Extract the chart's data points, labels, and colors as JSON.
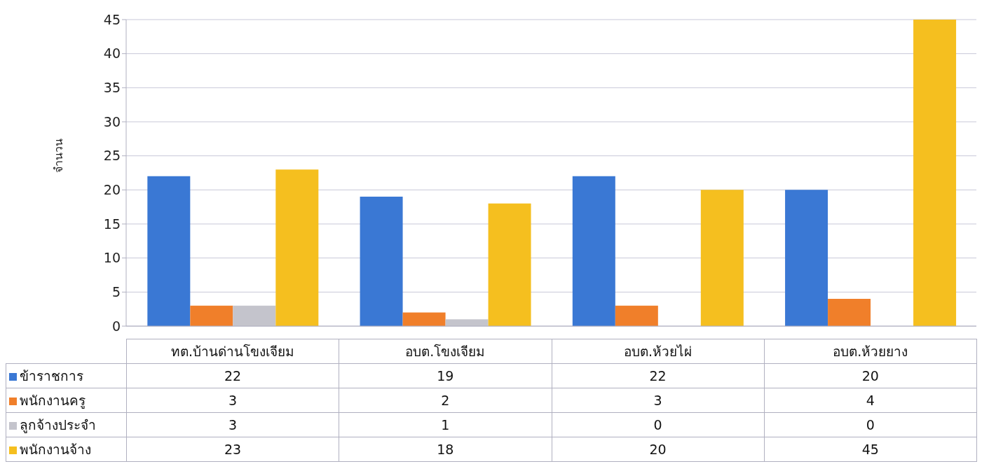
{
  "chart_data": {
    "type": "bar",
    "ylabel": "จำนวน",
    "categories": [
      "ทต.บ้านด่านโขงเจียม",
      "อบต.โขงเจียม",
      "อบต.ห้วยไผ่",
      "อบต.ห้วยยาง"
    ],
    "series": [
      {
        "name": "ข้าราชการ",
        "color": "#3a78d4",
        "values": [
          22,
          19,
          22,
          20
        ]
      },
      {
        "name": "พนักงานครู",
        "color": "#f07f2a",
        "values": [
          3,
          2,
          3,
          4
        ]
      },
      {
        "name": "ลูกจ้างประจำ",
        "color": "#c4c4cc",
        "values": [
          3,
          1,
          0,
          0
        ]
      },
      {
        "name": "พนักงานจ้าง",
        "color": "#f5bf1f",
        "values": [
          23,
          18,
          20,
          45
        ]
      }
    ],
    "ylim": [
      0,
      45
    ],
    "yticks": [
      0,
      5,
      10,
      15,
      20,
      25,
      30,
      35,
      40,
      45
    ],
    "grid": "y",
    "legend": "bottom",
    "data_labels": true
  }
}
